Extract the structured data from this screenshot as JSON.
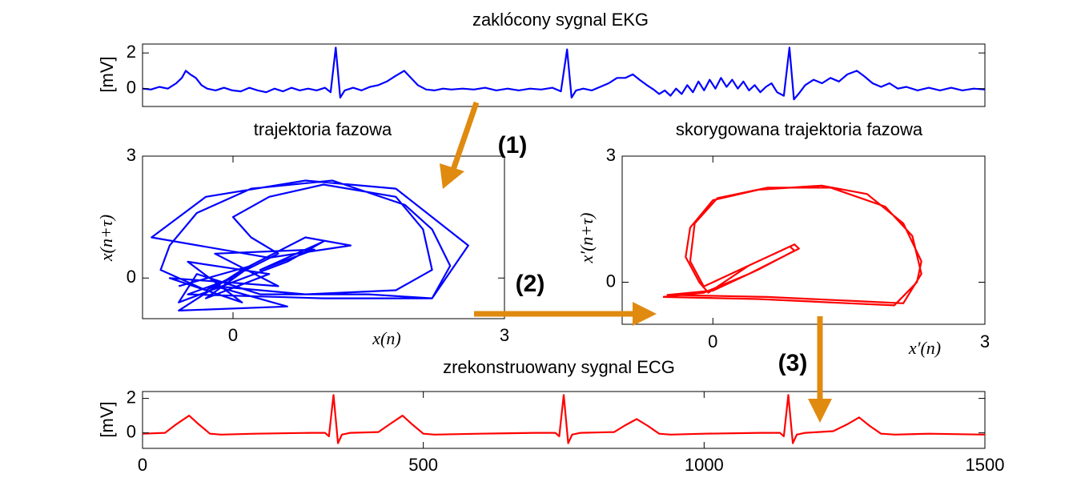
{
  "chart_data": [
    {
      "type": "line",
      "title": "zaklócony sygnal EKG",
      "ylabel": "[mV]",
      "color": "#0000ff",
      "xlim": [
        0,
        1500
      ],
      "ylim": [
        -1,
        2.5
      ],
      "yticks": [
        0,
        2
      ],
      "x": [
        0,
        15,
        30,
        45,
        60,
        70,
        77,
        85,
        95,
        105,
        115,
        130,
        145,
        160,
        175,
        190,
        205,
        220,
        235,
        250,
        265,
        280,
        295,
        310,
        325,
        335,
        344,
        352,
        360,
        375,
        390,
        405,
        420,
        435,
        450,
        466,
        478,
        490,
        505,
        520,
        535,
        550,
        570,
        590,
        610,
        630,
        650,
        670,
        690,
        710,
        730,
        745,
        756,
        764,
        772,
        785,
        800,
        815,
        830,
        845,
        860,
        873,
        885,
        898,
        910,
        920,
        930,
        940,
        950,
        960,
        970,
        980,
        990,
        1000,
        1010,
        1020,
        1030,
        1040,
        1050,
        1060,
        1070,
        1080,
        1090,
        1100,
        1110,
        1120,
        1130,
        1142,
        1152,
        1160,
        1168,
        1180,
        1195,
        1210,
        1225,
        1240,
        1255,
        1272,
        1285,
        1300,
        1315,
        1330,
        1345,
        1360,
        1380,
        1400,
        1420,
        1440,
        1460,
        1480,
        1500
      ],
      "values": [
        0.0,
        -0.05,
        0.1,
        0.0,
        0.3,
        0.6,
        1.0,
        0.8,
        0.6,
        0.2,
        0.0,
        -0.1,
        0.05,
        -0.1,
        -0.15,
        0.05,
        -0.1,
        -0.2,
        0.0,
        -0.15,
        0.05,
        -0.1,
        0.0,
        -0.1,
        0.05,
        -0.2,
        2.3,
        -0.5,
        -0.1,
        0.05,
        -0.1,
        0.1,
        0.2,
        0.4,
        0.7,
        1.0,
        0.6,
        0.2,
        -0.05,
        -0.1,
        0.0,
        -0.05,
        0.0,
        -0.05,
        0.05,
        -0.1,
        0.0,
        -0.1,
        0.0,
        -0.05,
        0.05,
        -0.15,
        2.2,
        -0.5,
        -0.1,
        0.0,
        -0.1,
        0.1,
        0.3,
        0.6,
        0.6,
        0.8,
        0.5,
        0.2,
        -0.05,
        -0.3,
        -0.1,
        -0.4,
        0.0,
        -0.3,
        0.2,
        -0.2,
        0.4,
        -0.1,
        0.5,
        0.0,
        0.6,
        0.1,
        0.5,
        0.0,
        0.4,
        -0.1,
        0.2,
        -0.2,
        0.1,
        0.3,
        -0.2,
        -0.4,
        2.3,
        -0.6,
        -0.3,
        0.2,
        0.5,
        0.3,
        0.6,
        0.4,
        0.8,
        1.0,
        0.7,
        0.3,
        0.1,
        0.3,
        0.0,
        0.1,
        -0.1,
        0.05,
        -0.1,
        0.05,
        -0.1,
        0.0,
        -0.05
      ]
    },
    {
      "type": "line",
      "title": "trajektoria fazowa",
      "xlabel": "x(n)",
      "ylabel": "x(n+τ)",
      "color": "#0000ff",
      "xlim": [
        -1,
        3
      ],
      "ylim": [
        -1,
        3
      ],
      "xticks": [
        0,
        3
      ],
      "yticks": [
        0,
        3
      ],
      "x": [
        -0.6,
        0.2,
        -0.3,
        0.4,
        -0.5,
        0.1,
        -0.7,
        0.5,
        -0.2,
        0.9,
        0.3,
        1.0,
        0.6,
        -0.6,
        -0.4,
        0.3,
        1.5,
        2.2,
        2.4,
        2.2,
        1.9,
        1.1,
        0.2,
        -0.4,
        -0.7,
        -0.8,
        -0.3,
        0.5,
        0.2,
        0.0,
        0.4,
        1.0,
        1.8,
        2.1,
        2.2,
        1.8,
        0.8,
        -0.2,
        0.6,
        -0.6,
        0.1,
        0.8,
        1.3,
        0.4,
        -0.9,
        -0.3,
        0.8,
        1.8,
        2.6,
        2.2,
        1.0,
        -0.5,
        0.0
      ],
      "values": [
        -0.2,
        0.3,
        -0.5,
        0.1,
        0.4,
        -0.6,
        0.0,
        -0.2,
        0.6,
        0.7,
        0.2,
        0.9,
        0.4,
        -0.6,
        0.1,
        -0.4,
        -0.4,
        -0.5,
        0.3,
        1.2,
        1.8,
        2.4,
        2.2,
        1.6,
        0.8,
        0.2,
        -0.3,
        0.6,
        1.0,
        1.5,
        2.0,
        2.3,
        2.0,
        1.2,
        0.2,
        -0.3,
        -0.4,
        -0.2,
        -0.7,
        -0.8,
        0.2,
        1.0,
        0.8,
        0.5,
        1.0,
        2.0,
        2.4,
        2.2,
        0.8,
        -0.5,
        -0.5,
        -0.4,
        0.0
      ]
    },
    {
      "type": "line",
      "title": "skorygowana trajektoria fazowa",
      "xlabel": "x′(n)",
      "ylabel": "x′(n+τ)",
      "color": "#ff0000",
      "xlim": [
        -1,
        3
      ],
      "ylim": [
        -1,
        3
      ],
      "xticks": [
        0,
        3
      ],
      "yticks": [
        0,
        3
      ],
      "x": [
        -0.55,
        0.5,
        1.5,
        2.0,
        2.25,
        2.3,
        2.1,
        1.7,
        1.2,
        0.5,
        0.0,
        -0.25,
        -0.3,
        -0.15,
        -0.05,
        0.4,
        0.85,
        0.9,
        0.5,
        0.0,
        -0.5,
        0.6,
        1.6,
        2.1,
        2.3,
        2.2,
        1.9,
        1.3,
        0.6,
        0.05,
        -0.2,
        -0.25,
        -0.1,
        0.3,
        0.9,
        0.95,
        0.4,
        -0.1,
        -0.55
      ],
      "values": [
        -0.35,
        -0.4,
        -0.5,
        -0.55,
        0.0,
        0.5,
        1.4,
        2.1,
        2.3,
        2.2,
        1.95,
        1.3,
        0.6,
        0.0,
        -0.25,
        0.4,
        0.85,
        0.75,
        0.3,
        -0.2,
        -0.3,
        -0.35,
        -0.45,
        -0.5,
        0.2,
        1.1,
        1.8,
        2.25,
        2.25,
        2.0,
        1.4,
        0.5,
        -0.1,
        0.3,
        0.9,
        0.8,
        0.2,
        -0.25,
        -0.35
      ]
    },
    {
      "type": "line",
      "title": "zrekonstruowany sygnal ECG",
      "ylabel": "[mV]",
      "color": "#ff0000",
      "xlim": [
        0,
        1500
      ],
      "ylim": [
        -0.9,
        2.4
      ],
      "xticks": [
        0,
        500,
        1000,
        1500
      ],
      "yticks": [
        0,
        2
      ],
      "x": [
        0,
        40,
        60,
        83,
        100,
        120,
        140,
        200,
        300,
        325,
        332,
        340,
        348,
        355,
        370,
        420,
        440,
        463,
        480,
        500,
        520,
        600,
        700,
        735,
        742,
        750,
        758,
        765,
        780,
        840,
        860,
        880,
        900,
        920,
        940,
        1000,
        1100,
        1135,
        1142,
        1150,
        1158,
        1165,
        1180,
        1230,
        1255,
        1276,
        1295,
        1315,
        1340,
        1400,
        1500
      ],
      "values": [
        -0.05,
        0,
        0.5,
        1.0,
        0.5,
        -0.05,
        -0.1,
        -0.05,
        0,
        0,
        -0.2,
        2.2,
        -0.6,
        -0.1,
        0,
        0.05,
        0.5,
        1.0,
        0.5,
        -0.05,
        -0.1,
        -0.05,
        0,
        0,
        -0.2,
        2.2,
        -0.6,
        -0.1,
        0,
        0.05,
        0.45,
        0.8,
        0.4,
        -0.05,
        -0.1,
        -0.05,
        0,
        0,
        -0.2,
        2.2,
        -0.6,
        -0.1,
        0,
        0.1,
        0.5,
        0.9,
        0.4,
        -0.05,
        -0.1,
        -0.05,
        -0.1
      ]
    }
  ],
  "annotations": [
    "(1)",
    "(2)",
    "(3)"
  ]
}
